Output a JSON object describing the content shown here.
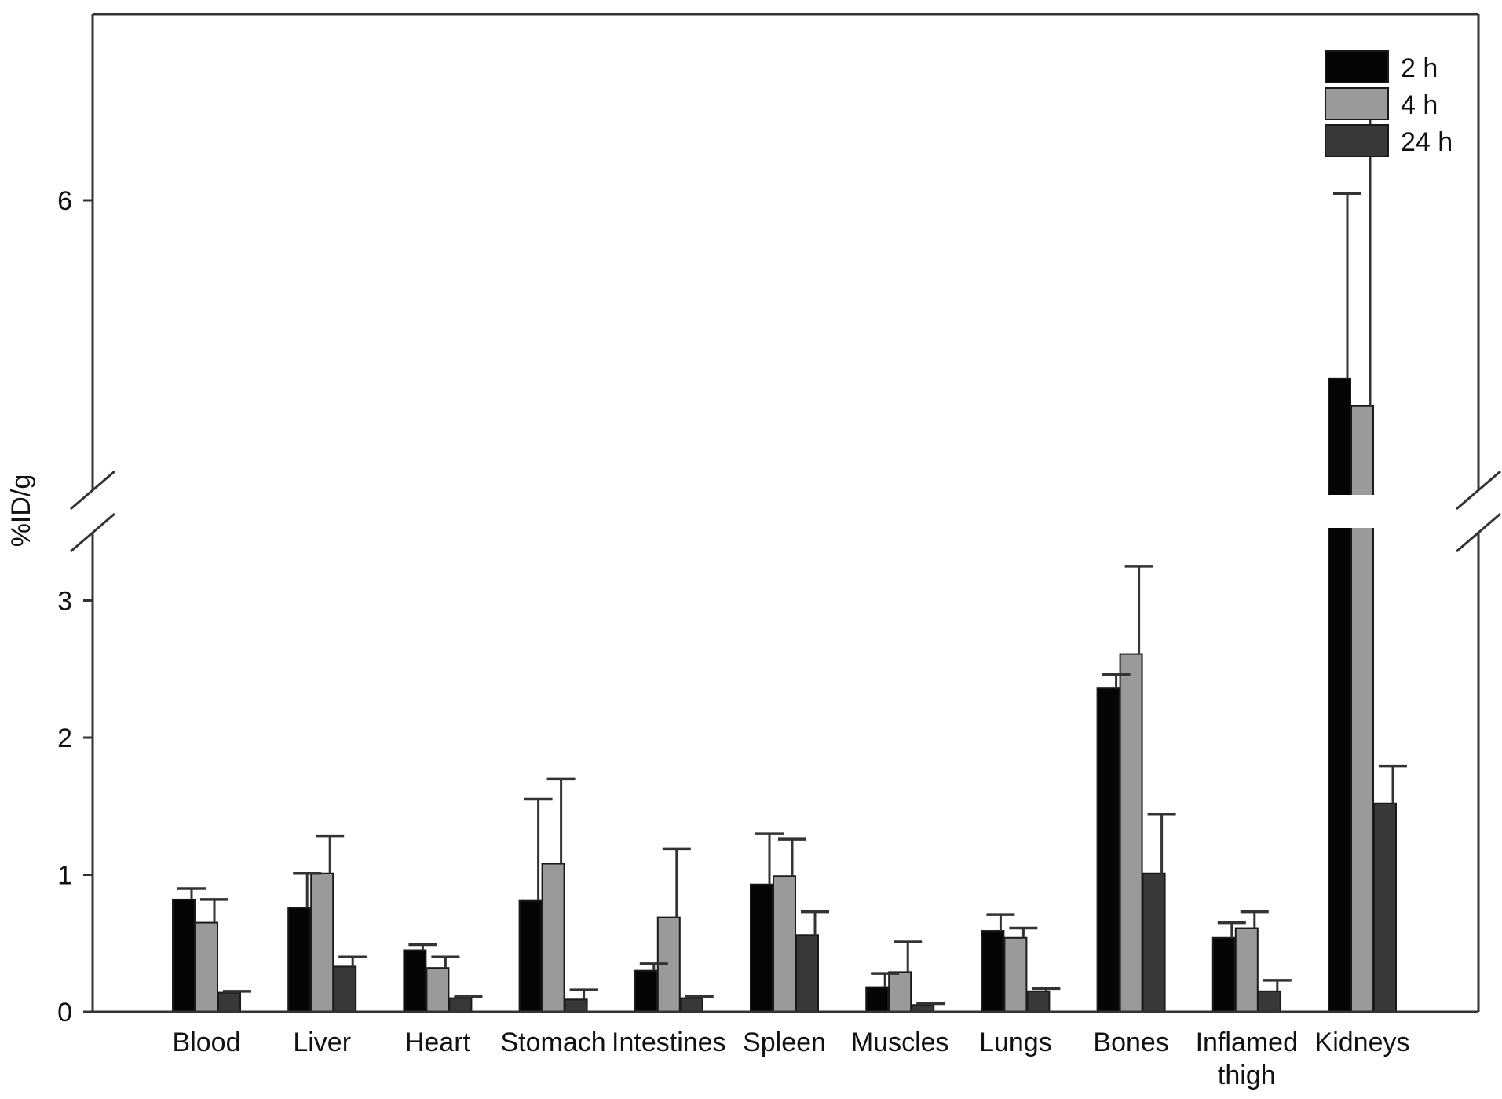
{
  "chart_data": {
    "type": "bar",
    "title": "",
    "xlabel": "",
    "ylabel": "%ID/g",
    "y_axis_break": true,
    "lower_segment_range": [
      0,
      3.4
    ],
    "upper_segment_range": [
      3.4,
      7.3
    ],
    "y_ticks": [
      {
        "value": 0,
        "label": "0"
      },
      {
        "value": 1,
        "label": "1"
      },
      {
        "value": 2,
        "label": "2"
      },
      {
        "value": 3,
        "label": "3"
      },
      {
        "value": 6,
        "label": "6"
      }
    ],
    "categories": [
      {
        "label": [
          "Blood"
        ]
      },
      {
        "label": [
          "Liver"
        ]
      },
      {
        "label": [
          "Heart"
        ]
      },
      {
        "label": [
          "Stomach"
        ]
      },
      {
        "label": [
          "Intestines"
        ]
      },
      {
        "label": [
          "Spleen"
        ]
      },
      {
        "label": [
          "Muscles"
        ]
      },
      {
        "label": [
          "Lungs"
        ]
      },
      {
        "label": [
          "Bones"
        ]
      },
      {
        "label": [
          "Inflamed",
          "thigh"
        ]
      },
      {
        "label": [
          "Kidneys"
        ]
      }
    ],
    "series": [
      {
        "name": "2 h",
        "color": "#050505",
        "values": [
          0.82,
          0.76,
          0.45,
          0.81,
          0.3,
          0.93,
          0.18,
          0.59,
          2.36,
          0.54,
          4.7
        ],
        "errors": [
          0.08,
          0.25,
          0.04,
          0.74,
          0.05,
          0.37,
          0.1,
          0.12,
          0.1,
          0.11,
          1.35
        ]
      },
      {
        "name": "4 h",
        "color": "#9a9a9a",
        "values": [
          0.65,
          1.01,
          0.32,
          1.08,
          0.69,
          0.99,
          0.29,
          0.54,
          2.61,
          0.61,
          4.5
        ],
        "errors": [
          0.17,
          0.27,
          0.08,
          0.62,
          0.5,
          0.27,
          0.22,
          0.07,
          0.64,
          0.12,
          2.1
        ]
      },
      {
        "name": "24 h",
        "color": "#383838",
        "values": [
          0.14,
          0.33,
          0.1,
          0.09,
          0.1,
          0.56,
          0.05,
          0.15,
          1.01,
          0.15,
          1.52
        ],
        "errors": [
          0.01,
          0.07,
          0.01,
          0.07,
          0.01,
          0.17,
          0.01,
          0.02,
          0.43,
          0.08,
          0.27
        ]
      }
    ],
    "legend_position": "top-right",
    "grid": false
  }
}
